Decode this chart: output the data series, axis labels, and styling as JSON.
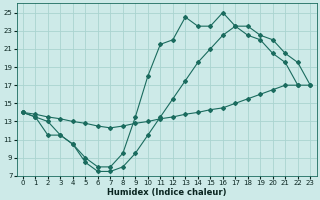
{
  "xlabel": "Humidex (Indice chaleur)",
  "bg_color": "#cdeae8",
  "grid_color": "#aad4d0",
  "line_color": "#1a6b5e",
  "xlim": [
    -0.5,
    23.5
  ],
  "ylim": [
    7,
    26
  ],
  "xticks": [
    0,
    1,
    2,
    3,
    4,
    5,
    6,
    7,
    8,
    9,
    10,
    11,
    12,
    13,
    14,
    15,
    16,
    17,
    18,
    19,
    20,
    21,
    22,
    23
  ],
  "yticks": [
    7,
    9,
    11,
    13,
    15,
    17,
    19,
    21,
    23,
    25
  ],
  "curve_upper_x": [
    0,
    1,
    2,
    3,
    4,
    5,
    6,
    7,
    8,
    9,
    10,
    11,
    12,
    13,
    14,
    15,
    16,
    17,
    18,
    19,
    20,
    21,
    22,
    23
  ],
  "curve_upper_y": [
    14.0,
    13.5,
    13.0,
    11.5,
    10.5,
    9.0,
    8.0,
    8.0,
    9.5,
    13.5,
    18.0,
    21.5,
    22.0,
    24.5,
    23.5,
    23.5,
    25.0,
    23.5,
    22.5,
    22.0,
    20.5,
    19.5,
    17.0,
    null
  ],
  "curve_lower_x": [
    0,
    1,
    2,
    3,
    4,
    5,
    6,
    7,
    8,
    9,
    10,
    11,
    12,
    13,
    14,
    15,
    16,
    17,
    18,
    19,
    20,
    21,
    22,
    23
  ],
  "curve_lower_y": [
    14.0,
    13.5,
    11.5,
    11.5,
    10.5,
    8.5,
    7.5,
    7.5,
    8.0,
    9.5,
    11.5,
    13.5,
    15.5,
    17.5,
    19.5,
    21.0,
    22.5,
    23.5,
    23.5,
    22.5,
    22.0,
    20.5,
    19.5,
    17.0
  ],
  "curve_diag_x": [
    0,
    1,
    2,
    3,
    4,
    5,
    6,
    7,
    8,
    9,
    10,
    11,
    12,
    13,
    14,
    15,
    16,
    17,
    18,
    19,
    20,
    21,
    22,
    23
  ],
  "curve_diag_y": [
    14.0,
    13.8,
    13.5,
    13.3,
    13.0,
    12.8,
    12.5,
    12.3,
    12.5,
    12.8,
    13.0,
    13.3,
    13.5,
    13.8,
    14.0,
    14.3,
    14.5,
    15.0,
    15.5,
    16.0,
    16.5,
    17.0,
    17.0,
    17.0
  ]
}
